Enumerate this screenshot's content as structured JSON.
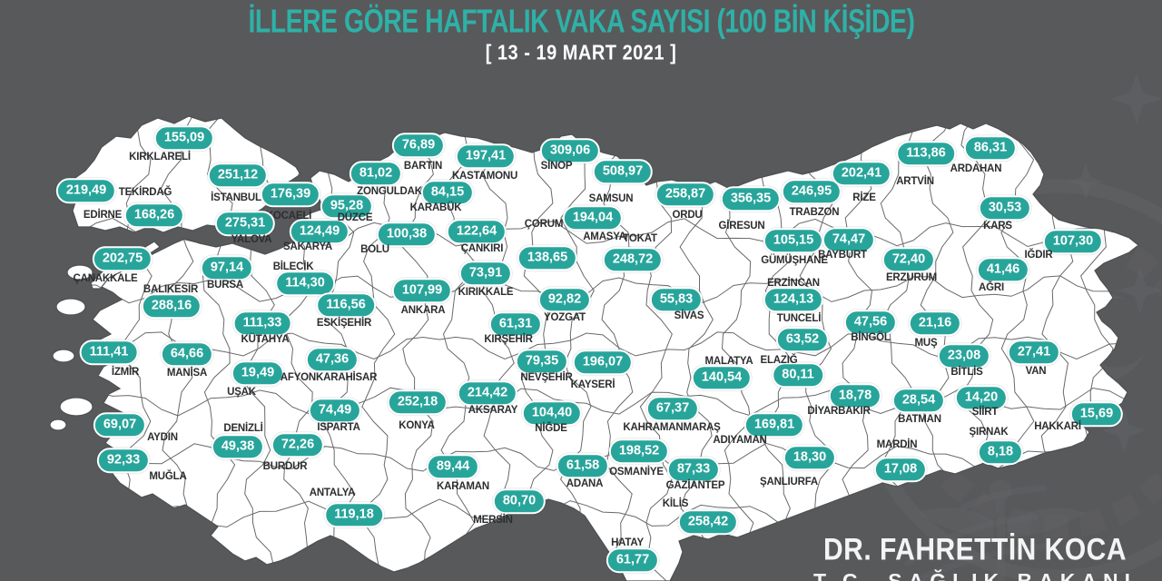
{
  "header": {
    "title": "İLLERE GÖRE HAFTALIK VAKA SAYISI (100 BİN KİŞİDE)",
    "subtitle": "[ 13 - 19 MART 2021 ]"
  },
  "attribution": {
    "name": "DR. FAHRETTİN KOCA",
    "role": "T.C. SAĞLIK BAKANI"
  },
  "colors": {
    "background": "#58595B",
    "land": "#FFFFFF",
    "border_lines": "#4E4F51",
    "badge_fill": "#28A59B",
    "badge_border": "#FFFFFF",
    "badge_text": "#FFFFFF",
    "title_text": "#2EB1A7",
    "label_text": "#2C2D2F",
    "watermark": "#6E6F72"
  },
  "map": {
    "unit": "haftalık vaka / 100 bin kişi",
    "provinces": [
      {
        "n": "KIRKLARELİ",
        "v": "155,09",
        "b": [
          203,
          152
        ],
        "l": [
          176,
          173
        ]
      },
      {
        "n": "EDİRNE",
        "v": "219,49",
        "b": [
          95,
          210
        ],
        "l": [
          113,
          237
        ]
      },
      {
        "n": "TEKİRDAĞ",
        "v": "168,26",
        "b": [
          170,
          237
        ],
        "l": [
          160,
          212
        ]
      },
      {
        "n": "İSTANBUL",
        "v": "251,12",
        "b": [
          262,
          193
        ],
        "l": [
          260,
          218
        ]
      },
      {
        "n": "KOCAELİ",
        "v": "176,39",
        "b": [
          320,
          214
        ],
        "l": [
          318,
          238
        ]
      },
      {
        "n": "YALOVA",
        "v": "275,31",
        "b": [
          270,
          246
        ],
        "l": [
          277,
          264
        ]
      },
      {
        "n": "SAKARYA",
        "v": "124,49",
        "b": [
          352,
          255
        ],
        "l": [
          339,
          272
        ]
      },
      {
        "n": "DÜZCE",
        "v": "95,28",
        "b": [
          382,
          227
        ],
        "l": [
          391,
          240
        ]
      },
      {
        "n": "ZONGULDAK",
        "v": "81,02",
        "b": [
          414,
          191
        ],
        "l": [
          429,
          211
        ]
      },
      {
        "n": "BARTIN",
        "v": "76,89",
        "b": [
          461,
          160
        ],
        "l": [
          466,
          183
        ]
      },
      {
        "n": "KARABÜK",
        "v": "84,15",
        "b": [
          493,
          212
        ],
        "l": [
          480,
          229
        ]
      },
      {
        "n": "BOLU",
        "v": "100,38",
        "b": [
          448,
          258
        ],
        "l": [
          413,
          275
        ]
      },
      {
        "n": "KASTAMONU",
        "v": "197,41",
        "b": [
          535,
          172
        ],
        "l": [
          534,
          194
        ]
      },
      {
        "n": "ÇANKIRI",
        "v": "122,64",
        "b": [
          525,
          255
        ],
        "l": [
          531,
          274
        ]
      },
      {
        "n": "SİNOP",
        "v": "309,06",
        "b": [
          628,
          166
        ],
        "l": [
          613,
          183
        ]
      },
      {
        "n": "SAMSUN",
        "v": "508,97",
        "b": [
          686,
          189
        ],
        "l": [
          673,
          219
        ]
      },
      {
        "n": "ÇORUM",
        "v": "138,65",
        "b": [
          603,
          284
        ],
        "l": [
          599,
          247
        ]
      },
      {
        "n": "AMASYA",
        "v": "194,04",
        "b": [
          653,
          240
        ],
        "l": [
          666,
          261
        ]
      },
      {
        "n": "TOKAT",
        "v": "248,72",
        "b": [
          697,
          286
        ],
        "l": [
          705,
          263
        ]
      },
      {
        "n": "ORDU",
        "v": "258,87",
        "b": [
          755,
          214
        ],
        "l": [
          757,
          237
        ]
      },
      {
        "n": "GİRESUN",
        "v": "356,35",
        "b": [
          827,
          219
        ],
        "l": [
          817,
          249
        ]
      },
      {
        "n": "TRABZON",
        "v": "246,95",
        "b": [
          894,
          211
        ],
        "l": [
          897,
          234
        ]
      },
      {
        "n": "RİZE",
        "v": "202,41",
        "b": [
          949,
          191
        ],
        "l": [
          952,
          218
        ]
      },
      {
        "n": "ARTVİN",
        "v": "113,86",
        "b": [
          1020,
          169
        ],
        "l": [
          1008,
          200
        ]
      },
      {
        "n": "ARDAHAN",
        "v": "86,31",
        "b": [
          1091,
          163
        ],
        "l": [
          1075,
          186
        ]
      },
      {
        "n": "KARS",
        "v": "30,53",
        "b": [
          1107,
          229
        ],
        "l": [
          1099,
          249
        ]
      },
      {
        "n": "IĞDIR",
        "v": "107,30",
        "b": [
          1182,
          266
        ],
        "l": [
          1144,
          281
        ]
      },
      {
        "n": "AĞRI",
        "v": "41,46",
        "b": [
          1105,
          297
        ],
        "l": [
          1092,
          317
        ]
      },
      {
        "n": "GÜMÜŞHANE",
        "v": "105,15",
        "b": [
          874,
          265
        ],
        "l": [
          875,
          287
        ]
      },
      {
        "n": "BAYBURT",
        "v": "74,47",
        "b": [
          935,
          264
        ],
        "l": [
          928,
          281
        ]
      },
      {
        "n": "ERZURUM",
        "v": "72,40",
        "b": [
          1001,
          286
        ],
        "l": [
          1004,
          306
        ]
      },
      {
        "n": "ERZİNCAN",
        "v": "124,13",
        "b": [
          874,
          330
        ],
        "l": [
          874,
          312
        ]
      },
      {
        "n": "TUNCELİ",
        "v": "63,52",
        "b": [
          884,
          374
        ],
        "l": [
          880,
          351
        ]
      },
      {
        "n": "BİNGÖL",
        "v": "47,56",
        "b": [
          959,
          355
        ],
        "l": [
          959,
          372
        ]
      },
      {
        "n": "MUŞ",
        "v": "21,16",
        "b": [
          1030,
          356
        ],
        "l": [
          1020,
          378
        ]
      },
      {
        "n": "BİTLİS",
        "v": "23,08",
        "b": [
          1062,
          392
        ],
        "l": [
          1065,
          410
        ]
      },
      {
        "n": "VAN",
        "v": "27,41",
        "b": [
          1139,
          388
        ],
        "l": [
          1141,
          409
        ]
      },
      {
        "n": "ÇANAKKALE",
        "v": "202,75",
        "b": [
          135,
          285
        ],
        "l": [
          116,
          307
        ]
      },
      {
        "n": "BALIKESİR",
        "v": "288,16",
        "b": [
          189,
          337
        ],
        "l": [
          188,
          319
        ]
      },
      {
        "n": "BURSA",
        "v": "97,14",
        "b": [
          250,
          295
        ],
        "l": [
          248,
          314
        ]
      },
      {
        "n": "BİLECİK",
        "v": "114,30",
        "b": [
          336,
          312
        ],
        "l": [
          323,
          294
        ]
      },
      {
        "n": "ESKİŞEHİR",
        "v": "116,56",
        "b": [
          381,
          336
        ],
        "l": [
          379,
          356
        ]
      },
      {
        "n": "KÜTAHYA",
        "v": "111,33",
        "b": [
          289,
          356
        ],
        "l": [
          292,
          374
        ]
      },
      {
        "n": "ANKARA",
        "v": "107,99",
        "b": [
          465,
          320
        ],
        "l": [
          466,
          342
        ]
      },
      {
        "n": "KIRIKKALE",
        "v": "73,91",
        "b": [
          535,
          301
        ],
        "l": [
          535,
          322
        ]
      },
      {
        "n": "YOZGAT",
        "v": "92,82",
        "b": [
          622,
          330
        ],
        "l": [
          622,
          350
        ]
      },
      {
        "n": "KIRŞEHİR",
        "v": "61,31",
        "b": [
          568,
          357
        ],
        "l": [
          560,
          374
        ]
      },
      {
        "n": "SİVAS",
        "v": "55,83",
        "b": [
          745,
          330
        ],
        "l": [
          759,
          348
        ]
      },
      {
        "n": "İZMİR",
        "v": "111,41",
        "b": [
          120,
          388
        ],
        "l": [
          138,
          410
        ]
      },
      {
        "n": "MANİSA",
        "v": "64,66",
        "b": [
          206,
          390
        ],
        "l": [
          206,
          411
        ]
      },
      {
        "n": "UŞAK",
        "v": "19,49",
        "b": [
          284,
          411
        ],
        "l": [
          266,
          432
        ]
      },
      {
        "n": "AFYONKARAHİSAR",
        "v": "47,36",
        "b": [
          366,
          396
        ],
        "l": [
          362,
          416
        ]
      },
      {
        "n": "AYDIN",
        "v": "69,07",
        "b": [
          132,
          468
        ],
        "l": [
          179,
          482
        ]
      },
      {
        "n": "MUĞLA",
        "v": "92,33",
        "b": [
          136,
          507
        ],
        "l": [
          185,
          525
        ]
      },
      {
        "n": "DENİZLİ",
        "v": "49,38",
        "b": [
          262,
          492
        ],
        "l": [
          268,
          472
        ]
      },
      {
        "n": "BURDUR",
        "v": "72,26",
        "b": [
          328,
          490
        ],
        "l": [
          314,
          514
        ]
      },
      {
        "n": "ISPARTA",
        "v": "74,49",
        "b": [
          369,
          452
        ],
        "l": [
          373,
          471
        ]
      },
      {
        "n": "ANTALYA",
        "v": "119,18",
        "b": [
          390,
          567
        ],
        "l": [
          366,
          543
        ]
      },
      {
        "n": "KONYA",
        "v": "252,18",
        "b": [
          460,
          443
        ],
        "l": [
          459,
          469
        ]
      },
      {
        "n": "KARAMAN",
        "v": "89,44",
        "b": [
          499,
          514
        ],
        "l": [
          510,
          536
        ]
      },
      {
        "n": "MERSİN",
        "v": "80,70",
        "b": [
          572,
          552
        ],
        "l": [
          543,
          573
        ]
      },
      {
        "n": "AKSARAY",
        "v": "214,42",
        "b": [
          537,
          433
        ],
        "l": [
          543,
          452
        ]
      },
      {
        "n": "NİĞDE",
        "v": "104,40",
        "b": [
          608,
          455
        ],
        "l": [
          607,
          472
        ]
      },
      {
        "n": "NEVŞEHİR",
        "v": "79,35",
        "b": [
          597,
          398
        ],
        "l": [
          602,
          416
        ]
      },
      {
        "n": "KAYSERİ",
        "v": "196,07",
        "b": [
          664,
          399
        ],
        "l": [
          653,
          424
        ]
      },
      {
        "n": "ADANA",
        "v": "61,58",
        "b": [
          642,
          513
        ],
        "l": [
          644,
          533
        ]
      },
      {
        "n": "OSMANİYE",
        "v": "198,52",
        "b": [
          704,
          497
        ],
        "l": [
          701,
          520
        ]
      },
      {
        "n": "KAHRAMANMARAŞ",
        "v": "67,37",
        "b": [
          741,
          450
        ],
        "l": [
          740,
          471
        ]
      },
      {
        "n": "HATAY",
        "v": "61,77",
        "b": [
          697,
          617
        ],
        "l": [
          691,
          598
        ]
      },
      {
        "n": "GAZİANTEP",
        "v": "87,33",
        "b": [
          764,
          517
        ],
        "l": [
          766,
          535
        ]
      },
      {
        "n": "KİLİS",
        "v": "258,42",
        "b": [
          780,
          575
        ],
        "l": [
          744,
          555
        ]
      },
      {
        "n": "MALATYA",
        "v": "140,54",
        "b": [
          795,
          416
        ],
        "l": [
          803,
          398
        ]
      },
      {
        "n": "ELAZIĞ",
        "v": "80,11",
        "b": [
          879,
          413
        ],
        "l": [
          858,
          397
        ]
      },
      {
        "n": "ADIYAMAN",
        "v": "169,81",
        "b": [
          853,
          468
        ],
        "l": [
          815,
          485
        ]
      },
      {
        "n": "ŞANLIURFA",
        "v": "18,30",
        "b": [
          892,
          504
        ],
        "l": [
          869,
          531
        ]
      },
      {
        "n": "DİYARBAKIR",
        "v": "18,78",
        "b": [
          942,
          436
        ],
        "l": [
          924,
          453
        ]
      },
      {
        "n": "MARDİN",
        "v": "17,08",
        "b": [
          992,
          517
        ],
        "l": [
          988,
          490
        ]
      },
      {
        "n": "BATMAN",
        "v": "28,54",
        "b": [
          1012,
          441
        ],
        "l": [
          1013,
          462
        ]
      },
      {
        "n": "SİİRT",
        "v": "14,20",
        "b": [
          1081,
          438
        ],
        "l": [
          1085,
          454
        ]
      },
      {
        "n": "ŞIRNAK",
        "v": "8,18",
        "b": [
          1102,
          498
        ],
        "l": [
          1089,
          476
        ]
      },
      {
        "n": "HAKKARİ",
        "v": "15,69",
        "b": [
          1208,
          456
        ],
        "l": [
          1165,
          470
        ]
      }
    ]
  }
}
